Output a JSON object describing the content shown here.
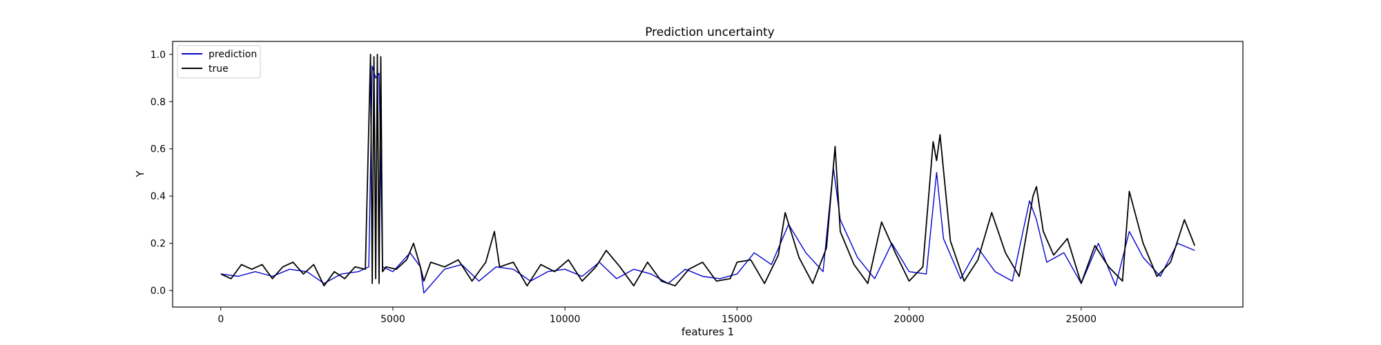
{
  "chart_data": {
    "type": "line",
    "title": "Prediction uncertainty",
    "xlabel": "features 1",
    "ylabel": "Y",
    "xlim": [
      -1400,
      29700
    ],
    "ylim": [
      -0.07,
      1.055
    ],
    "x_ticks": [
      0,
      5000,
      10000,
      15000,
      20000,
      25000
    ],
    "y_ticks": [
      0.0,
      0.2,
      0.4,
      0.6,
      0.8,
      1.0
    ],
    "grid": false,
    "legend_position": "top-left",
    "colors": {
      "prediction": "#0000cc",
      "true": "#000000"
    },
    "series": [
      {
        "name": "prediction",
        "x": [
          0,
          500,
          1000,
          1500,
          2000,
          2500,
          3000,
          3500,
          4000,
          4300,
          4400,
          4500,
          4600,
          4700,
          5000,
          5500,
          5800,
          5900,
          6500,
          7000,
          7500,
          8000,
          8500,
          9000,
          9500,
          10000,
          10500,
          11000,
          11500,
          12000,
          12500,
          13000,
          13500,
          14000,
          14500,
          15000,
          15500,
          16000,
          16500,
          17000,
          17500,
          17800,
          18000,
          18500,
          19000,
          19500,
          20000,
          20500,
          20800,
          21000,
          21500,
          22000,
          22500,
          23000,
          23500,
          23700,
          24000,
          24500,
          25000,
          25500,
          26000,
          26400,
          26800,
          27300,
          27800,
          28300
        ],
        "y": [
          0.07,
          0.06,
          0.08,
          0.06,
          0.09,
          0.08,
          0.03,
          0.07,
          0.08,
          0.1,
          0.95,
          0.9,
          0.92,
          0.1,
          0.08,
          0.16,
          0.1,
          -0.01,
          0.09,
          0.11,
          0.04,
          0.1,
          0.09,
          0.04,
          0.08,
          0.09,
          0.06,
          0.12,
          0.05,
          0.09,
          0.07,
          0.03,
          0.09,
          0.06,
          0.05,
          0.07,
          0.16,
          0.11,
          0.28,
          0.16,
          0.08,
          0.52,
          0.3,
          0.14,
          0.05,
          0.2,
          0.08,
          0.07,
          0.5,
          0.22,
          0.05,
          0.18,
          0.08,
          0.04,
          0.38,
          0.3,
          0.12,
          0.16,
          0.03,
          0.2,
          0.02,
          0.25,
          0.14,
          0.06,
          0.2,
          0.17
        ]
      },
      {
        "name": "true",
        "x": [
          0,
          300,
          600,
          900,
          1200,
          1500,
          1800,
          2100,
          2400,
          2700,
          3000,
          3300,
          3600,
          3900,
          4200,
          4350,
          4400,
          4450,
          4500,
          4550,
          4600,
          4650,
          4700,
          4800,
          5100,
          5400,
          5600,
          5800,
          5900,
          6100,
          6500,
          6900,
          7300,
          7700,
          7950,
          8100,
          8500,
          8900,
          9300,
          9700,
          10100,
          10500,
          10900,
          11200,
          11600,
          12000,
          12400,
          12800,
          13200,
          13600,
          14000,
          14400,
          14800,
          15000,
          15400,
          15800,
          16200,
          16400,
          16800,
          17200,
          17600,
          17850,
          18000,
          18400,
          18800,
          19200,
          19600,
          20000,
          20400,
          20700,
          20800,
          20900,
          21200,
          21600,
          22000,
          22400,
          22800,
          23200,
          23600,
          23700,
          23900,
          24200,
          24600,
          25000,
          25400,
          25800,
          26200,
          26400,
          26800,
          27200,
          27600,
          28000,
          28300
        ],
        "y": [
          0.07,
          0.05,
          0.11,
          0.09,
          0.11,
          0.05,
          0.1,
          0.12,
          0.07,
          0.11,
          0.02,
          0.08,
          0.05,
          0.1,
          0.09,
          1.0,
          0.03,
          0.99,
          0.05,
          1.0,
          0.03,
          0.99,
          0.08,
          0.1,
          0.09,
          0.13,
          0.2,
          0.1,
          0.04,
          0.12,
          0.1,
          0.13,
          0.04,
          0.12,
          0.25,
          0.1,
          0.12,
          0.02,
          0.11,
          0.08,
          0.13,
          0.04,
          0.1,
          0.17,
          0.1,
          0.02,
          0.12,
          0.04,
          0.02,
          0.09,
          0.12,
          0.04,
          0.05,
          0.12,
          0.13,
          0.03,
          0.15,
          0.33,
          0.14,
          0.03,
          0.18,
          0.61,
          0.25,
          0.11,
          0.03,
          0.29,
          0.16,
          0.04,
          0.1,
          0.63,
          0.55,
          0.66,
          0.21,
          0.04,
          0.13,
          0.33,
          0.16,
          0.06,
          0.4,
          0.44,
          0.25,
          0.15,
          0.22,
          0.03,
          0.19,
          0.1,
          0.04,
          0.42,
          0.2,
          0.06,
          0.12,
          0.3,
          0.19
        ]
      }
    ]
  }
}
